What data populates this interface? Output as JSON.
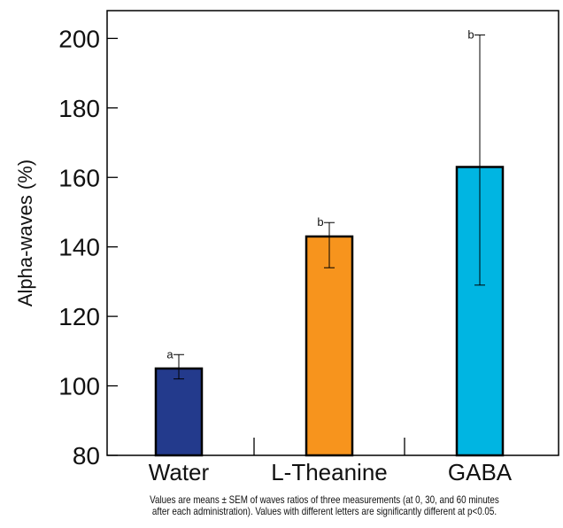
{
  "chart_data": {
    "type": "bar",
    "categories": [
      "Water",
      "L-Theanine",
      "GABA"
    ],
    "values": [
      105,
      143,
      163
    ],
    "errors": [
      {
        "low": 102,
        "high": 109
      },
      {
        "low": 134,
        "high": 147
      },
      {
        "low": 129,
        "high": 201
      }
    ],
    "significance_letters": [
      "a",
      "b",
      "b"
    ],
    "colors": [
      "#233a8c",
      "#f7941d",
      "#00b5e2"
    ],
    "ylabel": "Alpha-waves (%)",
    "xlabel": "",
    "ylim": [
      80,
      208
    ],
    "yticks": [
      80,
      100,
      120,
      140,
      160,
      180,
      200
    ],
    "grid": false,
    "legend": "none"
  },
  "caption": {
    "line1": "Values are means ± SEM of waves ratios of three measurements (at 0, 30, and 60 minutes",
    "line2": "after each administration). Values with different letters are significantly different at p<0.05."
  }
}
